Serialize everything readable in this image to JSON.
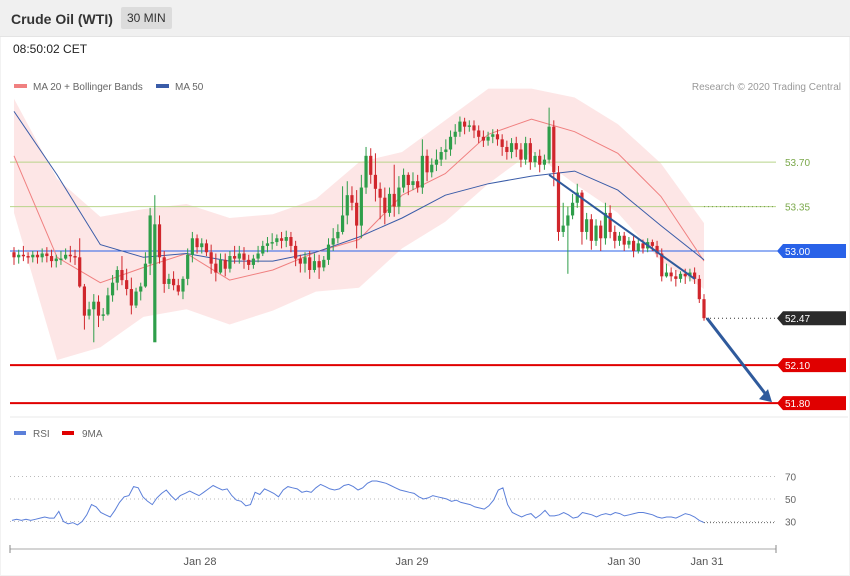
{
  "header": {
    "title": "Crude Oil (WTI)",
    "interval": "30 MIN"
  },
  "timestamp": "08:50:02 CET",
  "legend": {
    "ma20": {
      "label": "MA 20 + Bollinger Bands",
      "color": "#f08080"
    },
    "ma50": {
      "label": "MA 50",
      "color": "#3a5ca8"
    }
  },
  "copyright": "Research © 2020 Trading Central",
  "rsi_legend": {
    "rsi": {
      "label": "RSI",
      "color": "#5b7fd9"
    },
    "ma9": {
      "label": "9MA",
      "color": "#e00000"
    }
  },
  "colors": {
    "up": "#2e9e4a",
    "down": "#d0262c",
    "band": "#fde0e0",
    "resistance": "#b8d48a",
    "pivot": "#2962e8",
    "support": "#e00000",
    "arrow": "#2f5a9c"
  },
  "chart_data": [
    {
      "type": "candlestick",
      "ylim": [
        51.62,
        54.34
      ],
      "x_ticks": [
        "Jan 28",
        "Jan 29",
        "Jan 30",
        "Jan 31"
      ],
      "price_levels": [
        {
          "value": 53.7,
          "label": "53.70",
          "kind": "resistance"
        },
        {
          "value": 53.35,
          "label": "53.35",
          "kind": "resistance"
        },
        {
          "value": 53.0,
          "label": "53.00",
          "kind": "pivot"
        },
        {
          "value": 52.47,
          "label": "52.47",
          "kind": "last"
        },
        {
          "value": 52.1,
          "label": "52.10",
          "kind": "support"
        },
        {
          "value": 51.8,
          "label": "51.80",
          "kind": "support"
        }
      ],
      "ma50": [
        54.1,
        53.6,
        53.05,
        52.95,
        52.98,
        52.92,
        52.92,
        52.99,
        53.11,
        53.26,
        53.44,
        53.53,
        53.59,
        53.63,
        53.48,
        53.2,
        52.93
      ],
      "ma20": [
        53.75,
        52.95,
        52.75,
        52.87,
        52.98,
        52.77,
        52.85,
        52.99,
        53.09,
        53.44,
        53.61,
        53.92,
        54.04,
        53.94,
        53.77,
        53.43,
        52.92
      ],
      "bb_upper": [
        54.2,
        53.57,
        53.27,
        53.33,
        53.37,
        53.26,
        53.29,
        53.41,
        53.7,
        53.78,
        54.03,
        54.28,
        54.28,
        54.21,
        54.0,
        53.69,
        53.22
      ],
      "bb_lower": [
        53.3,
        52.14,
        52.24,
        52.48,
        52.54,
        52.42,
        52.53,
        52.68,
        52.71,
        53.02,
        53.23,
        53.53,
        53.78,
        53.53,
        53.3,
        52.92,
        52.7
      ],
      "candles": [
        [
          52.99,
          52.95,
          53.03,
          52.89
        ],
        [
          52.95,
          52.97,
          53.01,
          52.9
        ],
        [
          52.97,
          52.96,
          53.04,
          52.92
        ],
        [
          52.96,
          52.95,
          52.99,
          52.9
        ],
        [
          52.95,
          52.97,
          53.0,
          52.91
        ],
        [
          52.97,
          52.95,
          53.0,
          52.9
        ],
        [
          52.95,
          52.98,
          53.02,
          52.91
        ],
        [
          52.98,
          52.96,
          53.03,
          52.91
        ],
        [
          52.96,
          52.92,
          53.01,
          52.87
        ],
        [
          52.92,
          52.94,
          52.97,
          52.87
        ],
        [
          52.94,
          52.94,
          53.0,
          52.89
        ],
        [
          52.94,
          52.97,
          53.02,
          52.93
        ],
        [
          52.97,
          52.96,
          53.04,
          52.91
        ],
        [
          52.96,
          52.95,
          53.01,
          52.89
        ],
        [
          52.95,
          52.72,
          53.1,
          52.71
        ],
        [
          52.72,
          52.49,
          52.74,
          52.38
        ],
        [
          52.49,
          52.54,
          52.6,
          52.46
        ],
        [
          52.54,
          52.6,
          52.66,
          52.28
        ],
        [
          52.6,
          52.49,
          52.65,
          52.4
        ],
        [
          52.49,
          52.5,
          52.55,
          52.45
        ],
        [
          52.5,
          52.65,
          52.71,
          52.49
        ],
        [
          52.65,
          52.75,
          52.81,
          52.6
        ],
        [
          52.75,
          52.85,
          52.88,
          52.69
        ],
        [
          52.85,
          52.77,
          52.96,
          52.73
        ],
        [
          52.77,
          52.7,
          52.86,
          52.65
        ],
        [
          52.7,
          52.57,
          52.79,
          52.5
        ],
        [
          52.57,
          52.68,
          52.71,
          52.55
        ],
        [
          52.68,
          52.72,
          52.75,
          52.61
        ],
        [
          52.72,
          52.9,
          52.99,
          52.71
        ],
        [
          52.9,
          53.28,
          53.34,
          52.81
        ],
        [
          52.28,
          53.21,
          53.44,
          53.16
        ],
        [
          53.21,
          52.95,
          53.28,
          52.9
        ],
        [
          52.95,
          52.74,
          53.0,
          52.67
        ],
        [
          52.74,
          52.78,
          52.82,
          52.7
        ],
        [
          52.78,
          52.73,
          52.84,
          52.69
        ],
        [
          52.73,
          52.68,
          52.78,
          52.65
        ],
        [
          52.68,
          52.78,
          52.8,
          52.62
        ],
        [
          52.78,
          52.97,
          53.02,
          52.73
        ],
        [
          52.97,
          53.1,
          53.15,
          52.91
        ],
        [
          53.1,
          53.03,
          53.13,
          52.98
        ],
        [
          53.03,
          53.06,
          53.1,
          52.98
        ],
        [
          53.06,
          52.99,
          53.09,
          52.96
        ],
        [
          52.99,
          52.9,
          53.05,
          52.82
        ],
        [
          52.9,
          52.83,
          52.98,
          52.76
        ],
        [
          52.83,
          52.93,
          52.98,
          52.82
        ],
        [
          52.93,
          52.86,
          52.98,
          52.8
        ],
        [
          52.86,
          52.96,
          53.0,
          52.83
        ],
        [
          52.96,
          52.94,
          53.04,
          52.9
        ],
        [
          52.94,
          52.98,
          53.04,
          52.9
        ],
        [
          52.98,
          52.93,
          53.03,
          52.86
        ],
        [
          52.93,
          52.89,
          52.97,
          52.85
        ],
        [
          52.89,
          52.94,
          52.97,
          52.86
        ],
        [
          52.94,
          52.98,
          53.04,
          52.91
        ],
        [
          52.98,
          53.04,
          53.08,
          52.96
        ],
        [
          53.04,
          53.06,
          53.11,
          52.99
        ],
        [
          53.06,
          53.07,
          53.14,
          53.01
        ],
        [
          53.07,
          53.1,
          53.13,
          53.04
        ],
        [
          53.1,
          53.08,
          53.15,
          53.02
        ],
        [
          53.08,
          53.11,
          53.16,
          53.03
        ],
        [
          53.11,
          53.04,
          53.15,
          52.99
        ],
        [
          53.04,
          52.94,
          53.08,
          52.88
        ],
        [
          52.94,
          52.9,
          52.97,
          52.83
        ],
        [
          52.9,
          52.95,
          52.99,
          52.83
        ],
        [
          52.95,
          52.85,
          53.0,
          52.78
        ],
        [
          52.85,
          52.92,
          52.98,
          52.83
        ],
        [
          52.92,
          52.87,
          52.97,
          52.78
        ],
        [
          52.87,
          52.93,
          52.96,
          52.84
        ],
        [
          52.93,
          53.05,
          53.1,
          52.89
        ],
        [
          53.05,
          53.1,
          53.18,
          53.0
        ],
        [
          53.1,
          53.15,
          53.21,
          53.06
        ],
        [
          53.15,
          53.28,
          53.51,
          53.13
        ],
        [
          53.28,
          53.44,
          53.55,
          53.21
        ],
        [
          53.44,
          53.38,
          53.51,
          53.32
        ],
        [
          53.38,
          53.2,
          53.48,
          53.02
        ],
        [
          53.2,
          53.5,
          53.6,
          53.1
        ],
        [
          53.5,
          53.75,
          53.82,
          53.45
        ],
        [
          53.75,
          53.6,
          53.81,
          53.53
        ],
        [
          53.6,
          53.49,
          53.77,
          53.39
        ],
        [
          53.49,
          53.42,
          53.54,
          53.25
        ],
        [
          53.42,
          53.3,
          53.5,
          53.21
        ],
        [
          53.3,
          53.45,
          53.5,
          53.27
        ],
        [
          53.45,
          53.35,
          53.68,
          53.27
        ],
        [
          53.35,
          53.5,
          53.59,
          53.29
        ],
        [
          53.5,
          53.6,
          53.65,
          53.46
        ],
        [
          53.6,
          53.52,
          53.62,
          53.44
        ],
        [
          53.52,
          53.55,
          53.62,
          53.48
        ],
        [
          53.55,
          53.5,
          53.6,
          53.46
        ],
        [
          53.5,
          53.75,
          53.88,
          53.45
        ],
        [
          53.75,
          53.62,
          53.8,
          53.55
        ],
        [
          53.62,
          53.68,
          53.73,
          53.58
        ],
        [
          53.68,
          53.72,
          53.8,
          53.63
        ],
        [
          53.72,
          53.78,
          53.82,
          53.67
        ],
        [
          53.78,
          53.8,
          53.88,
          53.72
        ],
        [
          53.8,
          53.9,
          53.95,
          53.75
        ],
        [
          53.9,
          53.94,
          54.0,
          53.84
        ],
        [
          53.94,
          54.02,
          54.06,
          53.9
        ],
        [
          54.02,
          53.98,
          54.05,
          53.92
        ],
        [
          53.98,
          53.99,
          54.03,
          53.94
        ],
        [
          53.99,
          53.95,
          54.03,
          53.89
        ],
        [
          53.95,
          53.9,
          53.99,
          53.85
        ],
        [
          53.9,
          53.87,
          53.95,
          53.82
        ],
        [
          53.87,
          53.9,
          53.94,
          53.83
        ],
        [
          53.9,
          53.92,
          53.96,
          53.85
        ],
        [
          53.92,
          53.88,
          53.96,
          53.83
        ],
        [
          53.88,
          53.82,
          53.92,
          53.75
        ],
        [
          53.82,
          53.78,
          53.87,
          53.72
        ],
        [
          53.78,
          53.85,
          53.89,
          53.73
        ],
        [
          53.85,
          53.8,
          53.9,
          53.74
        ],
        [
          53.8,
          53.72,
          53.85,
          53.66
        ],
        [
          53.72,
          53.85,
          53.9,
          53.68
        ],
        [
          53.85,
          53.7,
          53.89,
          53.64
        ],
        [
          53.7,
          53.75,
          53.78,
          53.66
        ],
        [
          53.75,
          53.68,
          53.8,
          53.62
        ],
        [
          53.68,
          53.72,
          53.76,
          53.64
        ],
        [
          53.72,
          53.98,
          54.13,
          53.69
        ],
        [
          53.98,
          53.62,
          54.03,
          53.51
        ],
        [
          53.62,
          53.15,
          53.67,
          53.08
        ],
        [
          53.15,
          53.2,
          53.38,
          53.11
        ],
        [
          53.2,
          53.28,
          53.35,
          52.82
        ],
        [
          53.28,
          53.38,
          53.45,
          53.25
        ],
        [
          53.38,
          53.46,
          53.53,
          53.34
        ],
        [
          53.46,
          53.15,
          53.48,
          53.05
        ],
        [
          53.15,
          53.25,
          53.3,
          53.09
        ],
        [
          53.25,
          53.08,
          53.29,
          53.01
        ],
        [
          53.08,
          53.2,
          53.25,
          53.04
        ],
        [
          53.2,
          53.1,
          53.24,
          53.0
        ],
        [
          53.1,
          53.3,
          53.38,
          53.05
        ],
        [
          53.3,
          53.15,
          53.36,
          53.1
        ],
        [
          53.15,
          53.08,
          53.2,
          53.02
        ],
        [
          53.08,
          53.12,
          53.15,
          53.04
        ],
        [
          53.12,
          53.05,
          53.15,
          53.0
        ],
        [
          53.05,
          53.08,
          53.11,
          53.02
        ],
        [
          53.08,
          53.0,
          53.12,
          52.95
        ],
        [
          53.0,
          53.06,
          53.1,
          52.98
        ],
        [
          53.06,
          53.02,
          53.09,
          52.98
        ],
        [
          53.02,
          53.07,
          53.1,
          52.99
        ],
        [
          53.07,
          53.04,
          53.09,
          53.0
        ],
        [
          53.04,
          52.98,
          53.08,
          52.95
        ],
        [
          52.98,
          52.8,
          53.02,
          52.76
        ],
        [
          52.8,
          52.83,
          52.9,
          52.79
        ],
        [
          52.83,
          52.8,
          52.87,
          52.76
        ],
        [
          52.8,
          52.78,
          52.85,
          52.72
        ],
        [
          52.78,
          52.82,
          52.84,
          52.75
        ],
        [
          52.82,
          52.8,
          52.86,
          52.74
        ],
        [
          52.8,
          52.83,
          52.86,
          52.76
        ],
        [
          52.83,
          52.78,
          52.87,
          52.74
        ],
        [
          52.78,
          52.62,
          52.81,
          52.59
        ],
        [
          52.62,
          52.47,
          52.66,
          52.45
        ]
      ],
      "arrow": {
        "from": 52.47,
        "to": 51.8
      }
    },
    {
      "type": "line",
      "name": "RSI",
      "yticks": [
        30,
        50,
        70
      ],
      "ylim": [
        10,
        90
      ],
      "values": [
        31,
        32,
        31,
        32,
        31,
        32,
        33,
        34,
        33,
        33,
        39,
        30,
        28,
        29,
        27,
        30,
        36,
        45,
        43,
        38,
        36,
        34,
        40,
        47,
        52,
        53,
        61,
        60,
        52,
        48,
        45,
        51,
        55,
        58,
        53,
        49,
        53,
        55,
        57,
        55,
        53,
        56,
        59,
        62,
        60,
        58,
        59,
        53,
        49,
        48,
        44,
        45,
        56,
        54,
        59,
        57,
        55,
        52,
        58,
        61,
        60,
        59,
        56,
        57,
        56,
        60,
        63,
        61,
        59,
        58,
        59,
        62,
        63,
        61,
        58,
        60,
        64,
        66,
        66,
        65,
        64,
        62,
        60,
        58,
        57,
        56,
        55,
        52,
        50,
        51,
        53,
        52,
        51,
        50,
        48,
        49,
        47,
        46,
        45,
        43,
        42,
        41,
        44,
        49,
        58,
        60,
        45,
        38,
        36,
        34,
        36,
        37,
        33,
        36,
        40,
        35,
        35,
        36,
        38,
        36,
        33,
        34,
        38,
        37,
        36,
        34,
        36,
        37,
        36,
        38,
        37,
        35,
        36,
        37,
        38,
        38,
        37,
        36,
        34,
        33,
        34,
        34,
        33,
        35,
        37,
        36,
        34,
        31,
        29
      ]
    }
  ]
}
